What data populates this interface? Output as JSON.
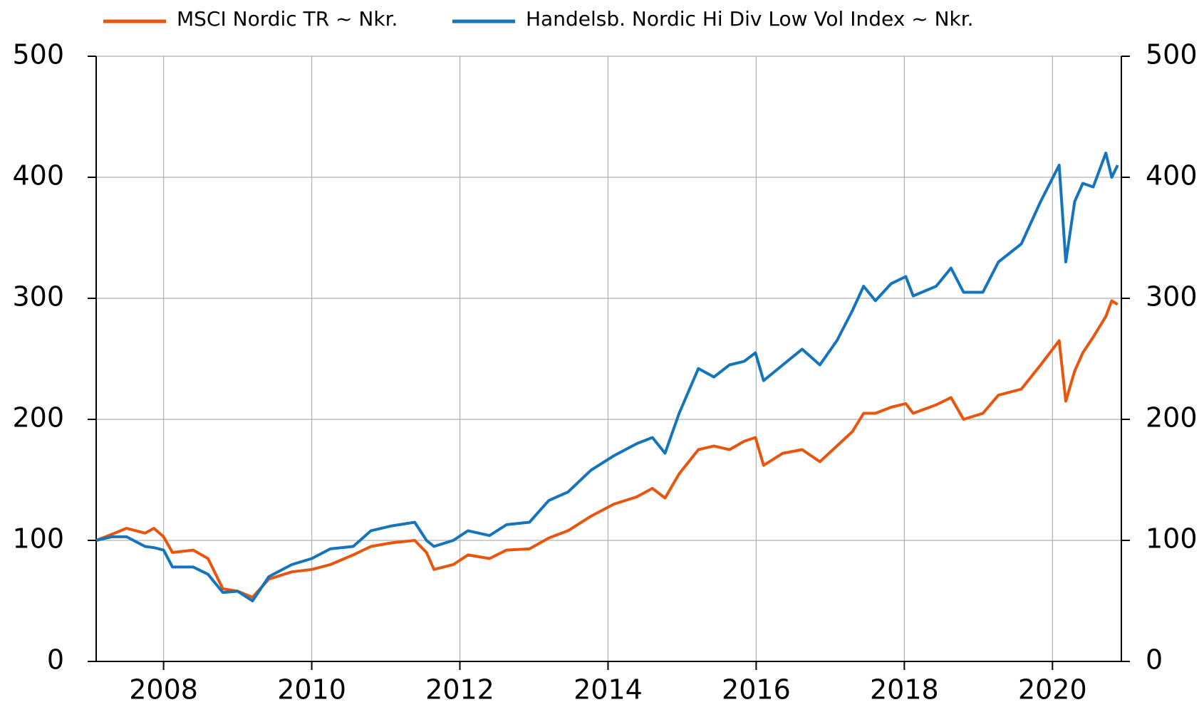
{
  "chart_data": {
    "type": "line",
    "x": [
      2007.09,
      2007.3,
      2007.5,
      2007.75,
      2007.87,
      2008.0,
      2008.12,
      2008.4,
      2008.6,
      2008.8,
      2009.0,
      2009.2,
      2009.42,
      2009.73,
      2010.0,
      2010.25,
      2010.56,
      2010.8,
      2011.08,
      2011.39,
      2011.55,
      2011.65,
      2011.91,
      2012.11,
      2012.4,
      2012.63,
      2012.94,
      2013.2,
      2013.46,
      2013.77,
      2014.08,
      2014.39,
      2014.6,
      2014.77,
      2014.96,
      2015.22,
      2015.43,
      2015.64,
      2015.84,
      2015.99,
      2016.1,
      2016.36,
      2016.62,
      2016.86,
      2017.09,
      2017.3,
      2017.45,
      2017.61,
      2017.82,
      2018.02,
      2018.12,
      2018.43,
      2018.63,
      2018.8,
      2019.06,
      2019.27,
      2019.58,
      2019.84,
      2020.09,
      2020.18,
      2020.3,
      2020.41,
      2020.55,
      2020.72,
      2020.8,
      2020.88
    ],
    "series": [
      {
        "name": "MSCI Nordic TR ~ Nkr.",
        "color": "#e8560e",
        "values": [
          100,
          105,
          110,
          106,
          110,
          103,
          90,
          92,
          85,
          60,
          58,
          53,
          68,
          74,
          76,
          80,
          88,
          95,
          98,
          100,
          90,
          76,
          80,
          88,
          85,
          92,
          93,
          102,
          108,
          120,
          130,
          136,
          143,
          135,
          155,
          175,
          178,
          175,
          182,
          185,
          162,
          172,
          175,
          165,
          178,
          190,
          205,
          205,
          210,
          213,
          205,
          212,
          218,
          200,
          205,
          220,
          225,
          245,
          265,
          215,
          240,
          255,
          268,
          285,
          298,
          295
        ]
      },
      {
        "name": "Handelsb. Nordic Hi Div Low Vol Index ~ Nkr.",
        "color": "#1474bc",
        "values": [
          100,
          103,
          103,
          95,
          94,
          92,
          78,
          78,
          72,
          57,
          58,
          50,
          70,
          80,
          85,
          93,
          95,
          108,
          112,
          115,
          100,
          95,
          100,
          108,
          104,
          113,
          115,
          133,
          140,
          158,
          170,
          180,
          185,
          172,
          205,
          242,
          235,
          245,
          248,
          255,
          232,
          245,
          258,
          245,
          265,
          290,
          310,
          298,
          312,
          318,
          302,
          310,
          325,
          305,
          305,
          330,
          345,
          380,
          410,
          330,
          380,
          395,
          392,
          420,
          400,
          410
        ]
      }
    ],
    "xlim": [
      2007.09,
      2020.93
    ],
    "xticks": [
      2008,
      2010,
      2012,
      2014,
      2016,
      2018,
      2020
    ],
    "ylim": [
      0,
      500
    ],
    "yticks": [
      0,
      100,
      200,
      300,
      400,
      500
    ],
    "y2lim": [
      0,
      500
    ],
    "y2ticks": [
      0,
      100,
      200,
      300,
      400,
      500
    ],
    "grid": true
  }
}
